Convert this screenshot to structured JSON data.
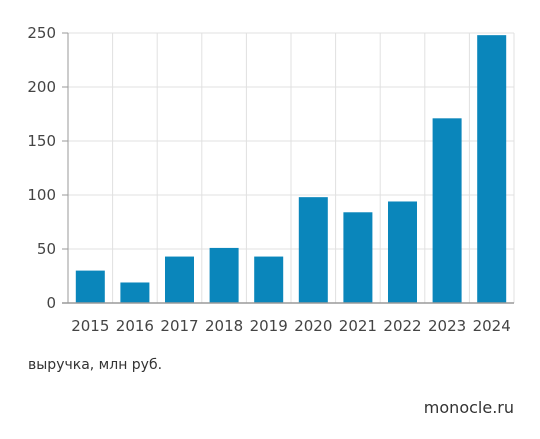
{
  "chart_data": {
    "type": "bar",
    "categories": [
      "2015",
      "2016",
      "2017",
      "2018",
      "2019",
      "2020",
      "2021",
      "2022",
      "2023",
      "2024"
    ],
    "values": [
      30,
      19,
      43,
      51,
      43,
      98,
      84,
      94,
      171,
      248
    ],
    "ylim": [
      0,
      250
    ],
    "yticks": [
      "0",
      "50",
      "100",
      "150",
      "200",
      "250"
    ],
    "grid": true,
    "bar_color": "#0a86bb",
    "grid_color": "#e0e0e0"
  },
  "caption": "выручка, млн руб.",
  "brand": "monocle.ru"
}
